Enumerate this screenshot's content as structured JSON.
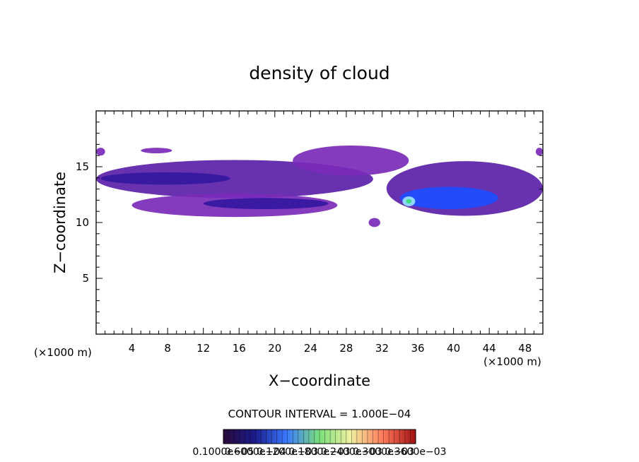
{
  "chart_data": {
    "type": "heatmap",
    "title": "density of cloud",
    "xlabel": "X−coordinate",
    "ylabel": "Z−coordinate",
    "x_unit_left": "(×1000 m)",
    "x_unit_right": "(×1000 m)",
    "xlim": [
      0,
      50
    ],
    "ylim": [
      0,
      20
    ],
    "xticks": [
      "4",
      "8",
      "12",
      "16",
      "20",
      "24",
      "28",
      "32",
      "36",
      "40",
      "44",
      "48"
    ],
    "xtick_values": [
      4,
      8,
      12,
      16,
      20,
      24,
      28,
      32,
      36,
      40,
      44,
      48
    ],
    "yticks": [
      "5",
      "10",
      "15"
    ],
    "ytick_values": [
      5,
      10,
      15
    ],
    "contour_interval": "CONTOUR INTERVAL =  1.000E−04",
    "colorbar": {
      "labels": [
        "0.1000e−05",
        "0.6000e−04",
        "0.1200e−03",
        "0.1800e−03",
        "0.2400e−03",
        "0.3000e−03",
        "0.3600e−03"
      ],
      "colors": [
        "#2a0a3a",
        "#1a1a8a",
        "#3a7aff",
        "#7ae07a",
        "#f0f0a0",
        "#ff7a5a",
        "#a01010"
      ]
    },
    "regions": [
      {
        "name": "upper-left-layer",
        "xmin": 0,
        "xmax": 31,
        "zmin": 12.2,
        "zmax": 15.6,
        "level": 0.55
      },
      {
        "name": "upper-left-core",
        "xmin": 0.5,
        "xmax": 15,
        "zmin": 13.4,
        "zmax": 14.5,
        "level": 0.8
      },
      {
        "name": "lower-band",
        "xmin": 4,
        "xmax": 27,
        "zmin": 10.5,
        "zmax": 12.6,
        "level": 0.5
      },
      {
        "name": "lower-band-core",
        "xmin": 12,
        "xmax": 26,
        "zmin": 11.2,
        "zmax": 12.2,
        "level": 0.85
      },
      {
        "name": "top-tip-left",
        "xmin": 0,
        "xmax": 1,
        "zmin": 16.0,
        "zmax": 16.7,
        "level": 0.4
      },
      {
        "name": "top-tip-mid",
        "xmin": 5,
        "xmax": 8.5,
        "zmin": 16.2,
        "zmax": 16.7,
        "level": 0.4
      },
      {
        "name": "middle-hump",
        "xmin": 22,
        "xmax": 35,
        "zmin": 14.2,
        "zmax": 16.9,
        "level": 0.45
      },
      {
        "name": "small-blob",
        "xmin": 30.5,
        "xmax": 31.8,
        "zmin": 9.6,
        "zmax": 10.4,
        "level": 0.45
      },
      {
        "name": "right-band",
        "xmin": 32.5,
        "xmax": 50,
        "zmin": 10.6,
        "zmax": 15.5,
        "level": 0.6
      },
      {
        "name": "right-core",
        "xmin": 34,
        "xmax": 45,
        "zmin": 11.2,
        "zmax": 13.2,
        "level": 1.0
      },
      {
        "name": "right-tip",
        "xmin": 49.2,
        "xmax": 50,
        "zmin": 16.0,
        "zmax": 16.7,
        "level": 0.4
      }
    ]
  }
}
